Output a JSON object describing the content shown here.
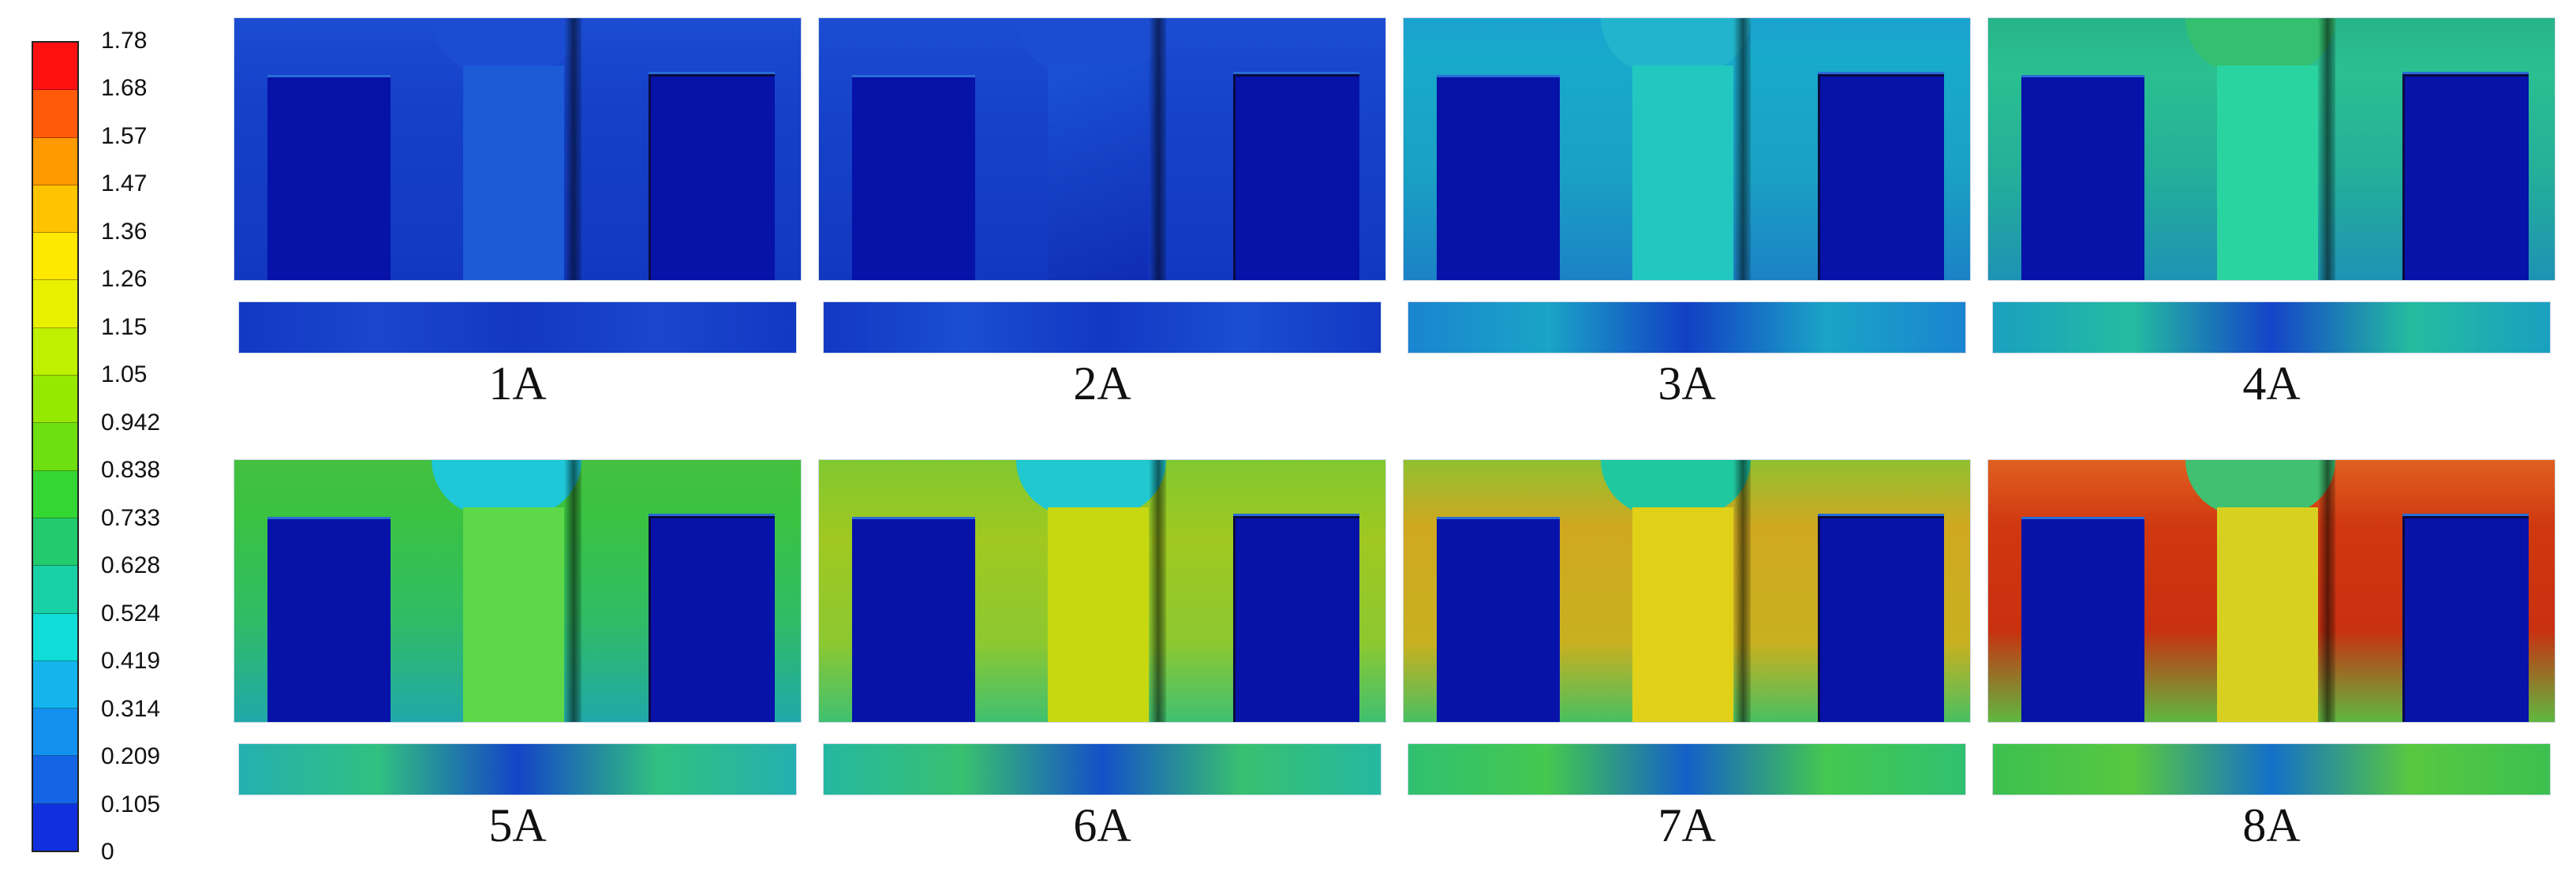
{
  "legend": {
    "ticks": [
      "1.78",
      "1.68",
      "1.57",
      "1.47",
      "1.36",
      "1.26",
      "1.15",
      "1.05",
      "0.942",
      "0.838",
      "0.733",
      "0.628",
      "0.524",
      "0.419",
      "0.314",
      "0.209",
      "0.105",
      "0"
    ],
    "colors": [
      "#ff1010",
      "#ff5a0a",
      "#ff9a00",
      "#ffc400",
      "#ffe800",
      "#e8f000",
      "#bef000",
      "#96e800",
      "#6ee010",
      "#34d634",
      "#22cc6e",
      "#18d2a6",
      "#10dcd8",
      "#14b4ee",
      "#1490f0",
      "#1464e6",
      "#1030e0"
    ]
  },
  "panels": [
    {
      "label": "1A",
      "bg": "linear-gradient(180deg,#1b4cd2 0%,#1540c8 35%,#1238c0 100%)",
      "column": "#1c5ad6",
      "top": "#1b4cd2",
      "sub": "linear-gradient(90deg,#1238c4,#1a46cc,#1338c2,#1a46cc,#1238c4)"
    },
    {
      "label": "2A",
      "bg": "linear-gradient(180deg,#1b4cd2 0%,#1542c8 40%,#1238c0 100%)",
      "column": "linear-gradient(160deg,#1a52d4,#0f2cb4)",
      "top": "#1b4cd2",
      "sub": "linear-gradient(90deg,#1238c4,#1a4ed0,#1238c4,#1a4ed0,#1238c4)"
    },
    {
      "label": "3A",
      "bg": "linear-gradient(180deg,#1aa2d0 0%,#18aacb 15%,#1aa0c4 60%,#1b82c6 100%)",
      "column": "#22c8c0",
      "top": "#22b4cc",
      "sub": "linear-gradient(90deg,#1a84d0,#1aa4c6,#1240c4,#1aa4c6,#1a84d0)"
    },
    {
      "label": "4A",
      "bg": "linear-gradient(180deg,#27b488 0%,#2abf90 20%,#24ae9a 60%,#1e92b4 100%)",
      "column": "#2ad4a0",
      "top": "#34c070",
      "sub": "linear-gradient(90deg,#1aa0c0,#24bca0,#1444c8,#24bca0,#1aa0c0)"
    },
    {
      "label": "5A",
      "bg": "linear-gradient(180deg,#45c040 0%,#3ac240 20%,#30bc64 60%,#20a8a8 100%)",
      "column": "#5ed848",
      "top": "#1ec8d8",
      "sub": "linear-gradient(90deg,#24b0b0,#30c080,#1444c8,#30c080,#24b0b0)"
    },
    {
      "label": "6A",
      "bg": "linear-gradient(180deg,#80c830 0%,#a0c820 30%,#8cc830 70%,#40c070 100%)",
      "column": "#c8d810",
      "top": "#20c8d0",
      "sub": "linear-gradient(90deg,#24b8a0,#38c070,#1450c8,#38c070,#24b8a0)"
    },
    {
      "label": "7A",
      "bg": "linear-gradient(180deg,#90c030 0%,#d0a820 25%,#c8b020 70%,#48c060 100%)",
      "column": "#e0d018",
      "top": "#20c8a0",
      "sub": "linear-gradient(90deg,#30c070,#44c850,#1460c8,#44c850,#30c070)"
    },
    {
      "label": "8A",
      "bg": "linear-gradient(180deg,#e06020 0%,#d03810 25%,#c83010 65%,#60b840 100%)",
      "column": "#d8d020",
      "top": "#40c070",
      "sub": "linear-gradient(90deg,#3cc050,#58c840,#1470c8,#58c840,#3cc050)"
    }
  ]
}
